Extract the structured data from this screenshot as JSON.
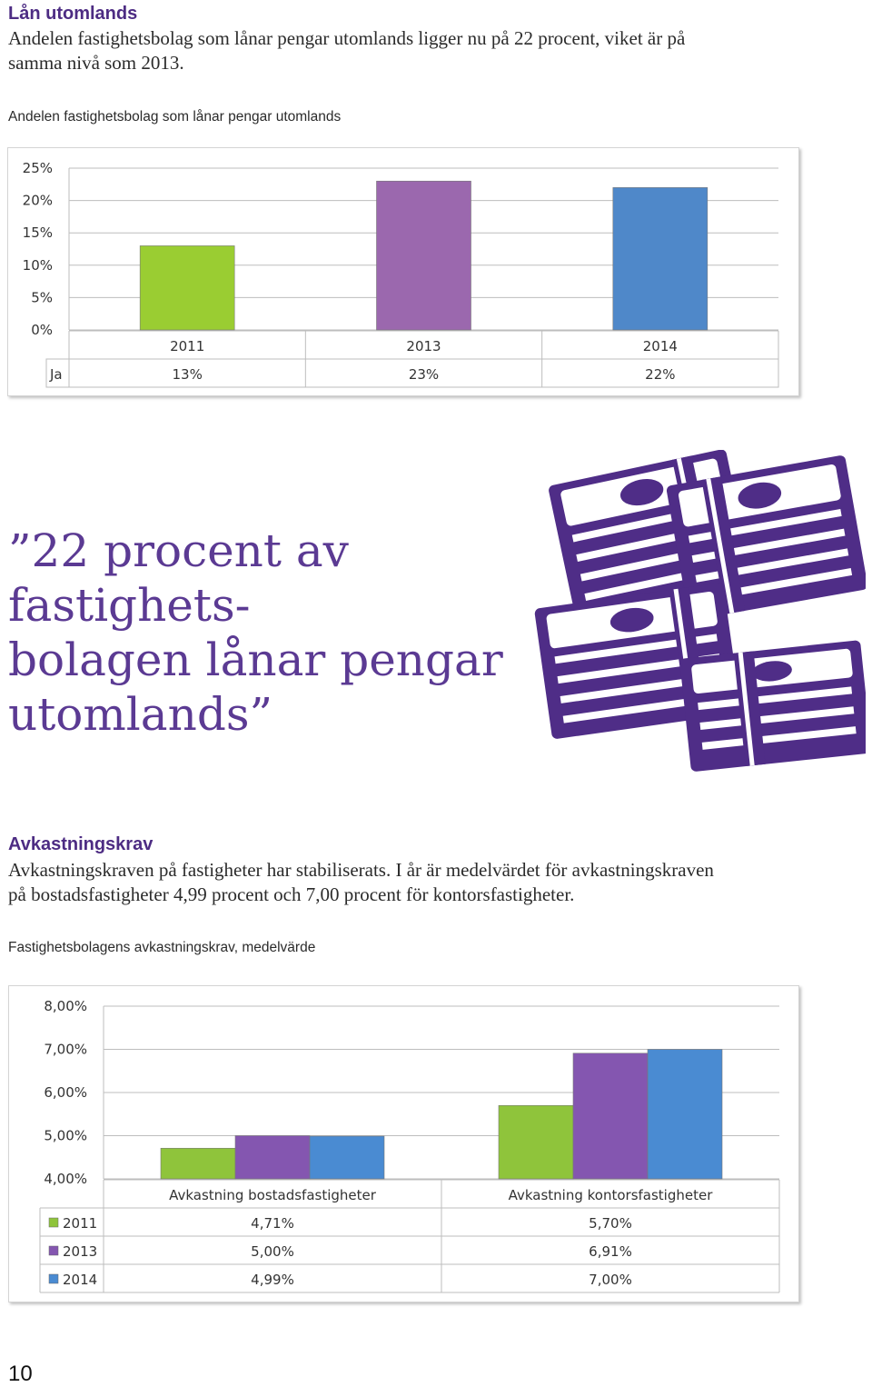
{
  "section1": {
    "heading": "Lån utomlands",
    "body_line1": "Andelen fastighetsbolag som lånar pengar utomlands ligger nu på 22 procent, viket är på",
    "body_line2": "samma nivå som 2013.",
    "chart_caption": "Andelen fastighetsbolag som lånar pengar utomlands"
  },
  "quote": {
    "text": "”22 procent av fastighets-\nbolagen lånar pengar\nutomlands”"
  },
  "money_illustration": {
    "icon": "money-stacks-icon",
    "color": "#4f2d87"
  },
  "section2": {
    "heading": "Avkastningskrav",
    "body_line1": "Avkastningskraven på fastigheter har stabiliserats. I år är medelvärdet för avkastningskraven",
    "body_line2": "på bostadsfastigheter  4,99 procent och 7,00 procent för kontorsfastigheter.",
    "chart_caption": "Fastighetsbolagens avkastningskrav, medelvärde"
  },
  "page_number": "10",
  "chart_data": [
    {
      "type": "bar",
      "categories": [
        "2011",
        "2013",
        "2014"
      ],
      "values": [
        13,
        23,
        22
      ],
      "series": [
        {
          "name": "Ja",
          "values": [
            13,
            23,
            22
          ]
        }
      ],
      "table_values": [
        "13%",
        "23%",
        "22%"
      ],
      "bar_colors": [
        "#9acd32",
        "#9b68ae",
        "#4f88c9"
      ],
      "ylim": [
        0,
        25
      ],
      "yticks": [
        "0%",
        "5%",
        "10%",
        "15%",
        "20%",
        "25%"
      ],
      "grid": true,
      "legend": "data-table"
    },
    {
      "type": "bar",
      "categories": [
        "Avkastning bostadsfastigheter",
        "Avkastning kontorsfastigheter"
      ],
      "series": [
        {
          "name": "2011",
          "values": [
            4.71,
            5.7
          ],
          "labels": [
            "4,71%",
            "5,70%"
          ],
          "color": "#8fc43b"
        },
        {
          "name": "2013",
          "values": [
            5.0,
            6.91
          ],
          "labels": [
            "5,00%",
            "6,91%"
          ],
          "color": "#8456b0"
        },
        {
          "name": "2014",
          "values": [
            4.99,
            7.0
          ],
          "labels": [
            "4,99%",
            "7,00%"
          ],
          "color": "#4a8bd2"
        }
      ],
      "ylim": [
        4,
        8
      ],
      "yticks": [
        "4,00%",
        "5,00%",
        "6,00%",
        "7,00%",
        "8,00%"
      ],
      "grid": true,
      "legend": "data-table"
    }
  ]
}
